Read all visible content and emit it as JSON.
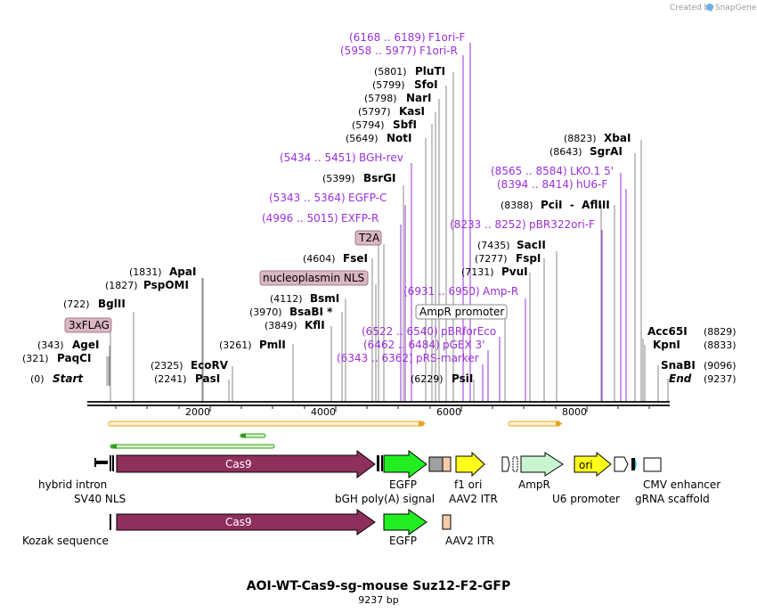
{
  "branding": {
    "created_by": "Created by",
    "product": "SnapGene"
  },
  "title": "AOI-WT-Cas9-sg-mouse Suz12-F2-GFP",
  "length_label": "9237 bp",
  "ruler": {
    "ticks": [
      "2000",
      "4000",
      "6000",
      "8000"
    ]
  },
  "sites": [
    {
      "pos": "(0)",
      "name": "Start"
    },
    {
      "pos": "(321)",
      "name": "PaqCI"
    },
    {
      "pos": "(343)",
      "name": "AgeI"
    },
    {
      "pos": "(722)",
      "name": "BglII"
    },
    {
      "pos": "(1827)",
      "name": "PspOMI"
    },
    {
      "pos": "(1831)",
      "name": "ApaI"
    },
    {
      "pos": "(2241)",
      "name": "PasI"
    },
    {
      "pos": "(2325)",
      "name": "EcoRV"
    },
    {
      "pos": "(3261)",
      "name": "PmlI"
    },
    {
      "pos": "(3849)",
      "name": "KflI"
    },
    {
      "pos": "(3970)",
      "name": "BsaBI *"
    },
    {
      "pos": "(4112)",
      "name": "BsmI"
    },
    {
      "pos": "(4604)",
      "name": "FseI"
    },
    {
      "pos": "(5399)",
      "name": "BsrGI"
    },
    {
      "pos": "(5649)",
      "name": "NotI"
    },
    {
      "pos": "(5794)",
      "name": "SbfI"
    },
    {
      "pos": "(5797)",
      "name": "KasI"
    },
    {
      "pos": "(5798)",
      "name": "NarI"
    },
    {
      "pos": "(5799)",
      "name": "SfoI"
    },
    {
      "pos": "(5801)",
      "name": "PluTI"
    },
    {
      "pos": "(6229)",
      "name": "PsiI"
    },
    {
      "pos": "(7131)",
      "name": "PvuI"
    },
    {
      "pos": "(7277)",
      "name": "FspI"
    },
    {
      "pos": "(7435)",
      "name": "SacII"
    },
    {
      "pos": "(8388)",
      "name": "PciI  -  AflIII"
    },
    {
      "pos": "(8643)",
      "name": "SgrAI"
    },
    {
      "pos": "(8823)",
      "name": "XbaI"
    },
    {
      "pos": "(8829)",
      "name": "Acc65I"
    },
    {
      "pos": "(8833)",
      "name": "KpnI"
    },
    {
      "pos": "(9096)",
      "name": "SnaBI"
    },
    {
      "pos": "(9237)",
      "name": "End"
    }
  ],
  "primers": [
    {
      "range": "(6168 .. 6189)",
      "name": "F1ori-F"
    },
    {
      "range": "(5958 .. 5977)",
      "name": "F1ori-R"
    },
    {
      "range": "(5434 .. 5451)",
      "name": "BGH-rev"
    },
    {
      "range": "(5343 .. 5364)",
      "name": "EGFP-C"
    },
    {
      "range": "(4996 .. 5015)",
      "name": "EXFP-R"
    },
    {
      "range": "(8565 .. 8584)",
      "name": "LKO.1 5'"
    },
    {
      "range": "(8394 .. 8414)",
      "name": "hU6-F"
    },
    {
      "range": "(8233 .. 8252)",
      "name": "pBR322ori-F"
    },
    {
      "range": "(6931 .. 6950)",
      "name": "Amp-R"
    },
    {
      "range": "(6522 .. 6540)",
      "name": "pBRforEco"
    },
    {
      "range": "(6462 .. 6484)",
      "name": "pGEX 3'"
    },
    {
      "range": "(6343 .. 6362)",
      "name": "pRS-marker"
    }
  ],
  "boxed_labels": {
    "t2a": "T2A",
    "nls": "nucleoplasmin NLS",
    "flag": "3xFLAG",
    "ampr_promoter": "AmpR promoter"
  },
  "features": {
    "cas9": "Cas9",
    "cas9_2": "Cas9",
    "ori": "ori",
    "hybrid_intron": "hybrid intron",
    "sv40_nls": "SV40 NLS",
    "egfp": "EGFP",
    "bgh": "bGH poly(A) signal",
    "f1_ori": "f1 ori",
    "aav2_itr": "AAV2 ITR",
    "ampr": "AmpR",
    "u6": "U6 promoter",
    "cmv": "CMV enhancer",
    "grna": "gRNA scaffold",
    "kozak": "Kozak sequence",
    "egfp_2": "EGFP",
    "aav2_itr_2": "AAV2 ITR"
  },
  "colors": {
    "cas9": "#8e2f5d",
    "egfp": "#22ee22",
    "f1": "#ffff1a",
    "ori": "#ffff1a",
    "ampr": "#c8f5d0",
    "itr": "#f7ccab",
    "primer": "#9b30d9",
    "orange_strand": "#e9a520",
    "green_strand": "#2f9e18"
  }
}
